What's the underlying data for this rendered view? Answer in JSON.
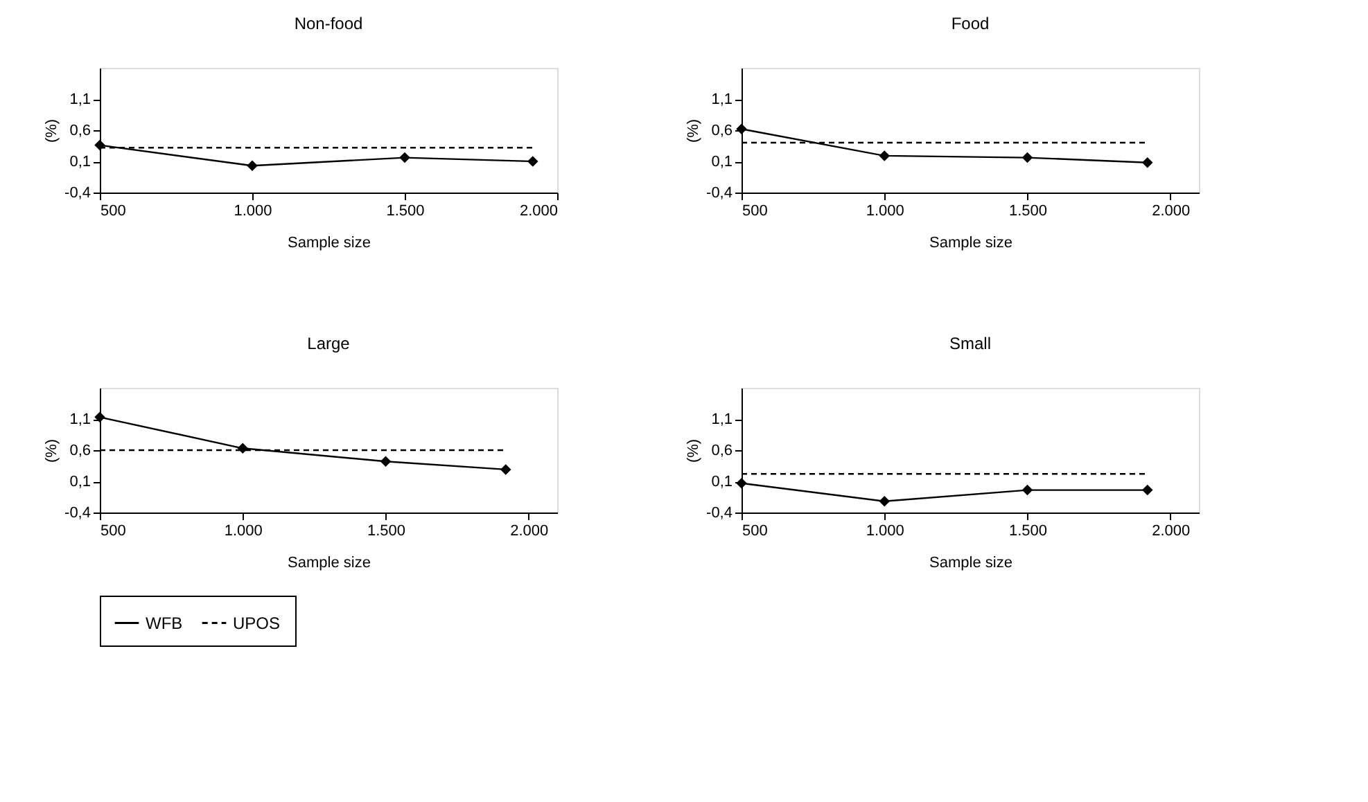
{
  "chart_data": [
    {
      "type": "line",
      "title": "Non-food",
      "xlabel": "Sample size",
      "ylabel": "(%)",
      "legend": "bottom",
      "grid": false,
      "xlim": [
        500,
        2000
      ],
      "xticks": [
        500,
        {
          "value": 1000,
          "label": "1.000"
        },
        {
          "value": 1500,
          "label": "1.500"
        },
        {
          "value": 2000,
          "label": "2.000"
        }
      ],
      "ylim": [
        -0.4,
        1.6
      ],
      "yticks": [
        {
          "value": -0.4,
          "label": "-0,4"
        },
        {
          "value": 0.1,
          "label": "0,1"
        },
        {
          "value": 0.6,
          "label": "0,6"
        },
        {
          "value": 1.1,
          "label": "1,1"
        }
      ],
      "x": [
        500,
        1000,
        1500,
        1920
      ],
      "series": [
        {
          "name": "WFB",
          "color": "#000000",
          "marker": "diamond",
          "line_style": "solid",
          "values": [
            0.36,
            0.03,
            0.16,
            0.1
          ]
        },
        {
          "name": "UPOS",
          "color": "#000000",
          "marker": "none",
          "line_style": "dashed",
          "values": [
            0.32,
            0.32,
            0.32,
            0.32
          ]
        }
      ]
    },
    {
      "type": "line",
      "title": "Food",
      "xlabel": "Sample size",
      "ylabel": "(%)",
      "legend": "bottom",
      "grid": false,
      "xlim": [
        500,
        2100
      ],
      "xticks": [
        500,
        {
          "value": 1000,
          "label": "1.000"
        },
        {
          "value": 1500,
          "label": "1.500"
        },
        {
          "value": 2000,
          "label": "2.000"
        }
      ],
      "ylim": [
        -0.4,
        1.6
      ],
      "yticks": [
        {
          "value": -0.4,
          "label": "-0,4"
        },
        {
          "value": 0.1,
          "label": "0,1"
        },
        {
          "value": 0.6,
          "label": "0,6"
        },
        {
          "value": 1.1,
          "label": "1,1"
        }
      ],
      "x": [
        500,
        1000,
        1500,
        1920
      ],
      "series": [
        {
          "name": "WFB",
          "color": "#000000",
          "marker": "diamond",
          "line_style": "solid",
          "values": [
            0.62,
            0.19,
            0.16,
            0.08
          ]
        },
        {
          "name": "UPOS",
          "color": "#000000",
          "marker": "none",
          "line_style": "dashed",
          "values": [
            0.4,
            0.4,
            0.4,
            0.4
          ]
        }
      ]
    },
    {
      "type": "line",
      "title": "Large",
      "xlabel": "Sample size",
      "ylabel": "(%)",
      "legend": "bottom",
      "grid": false,
      "xlim": [
        500,
        2100
      ],
      "xticks": [
        500,
        {
          "value": 1000,
          "label": "1.000"
        },
        {
          "value": 1500,
          "label": "1.500"
        },
        {
          "value": 2000,
          "label": "2.000"
        }
      ],
      "ylim": [
        -0.4,
        1.6
      ],
      "yticks": [
        {
          "value": -0.4,
          "label": "-0,4"
        },
        {
          "value": 0.1,
          "label": "0,1"
        },
        {
          "value": 0.6,
          "label": "0,6"
        },
        {
          "value": 1.1,
          "label": "1,1"
        }
      ],
      "x": [
        500,
        1000,
        1500,
        1920
      ],
      "series": [
        {
          "name": "WFB",
          "color": "#000000",
          "marker": "diamond",
          "line_style": "solid",
          "values": [
            1.13,
            0.63,
            0.42,
            0.29
          ]
        },
        {
          "name": "UPOS",
          "color": "#000000",
          "marker": "none",
          "line_style": "dashed",
          "values": [
            0.6,
            0.6,
            0.6,
            0.6
          ]
        }
      ]
    },
    {
      "type": "line",
      "title": "Small",
      "xlabel": "Sample size",
      "ylabel": "(%)",
      "legend": "bottom",
      "grid": false,
      "xlim": [
        500,
        2100
      ],
      "xticks": [
        500,
        {
          "value": 1000,
          "label": "1.000"
        },
        {
          "value": 1500,
          "label": "1.500"
        },
        {
          "value": 2000,
          "label": "2.000"
        }
      ],
      "ylim": [
        -0.4,
        1.6
      ],
      "yticks": [
        {
          "value": -0.4,
          "label": "-0,4"
        },
        {
          "value": 0.1,
          "label": "0,1"
        },
        {
          "value": 0.6,
          "label": "0,6"
        },
        {
          "value": 1.1,
          "label": "1,1"
        }
      ],
      "x": [
        500,
        1000,
        1500,
        1920
      ],
      "series": [
        {
          "name": "WFB",
          "color": "#000000",
          "marker": "diamond",
          "line_style": "solid",
          "values": [
            0.07,
            -0.22,
            -0.04,
            -0.04
          ]
        },
        {
          "name": "UPOS",
          "color": "#000000",
          "marker": "none",
          "line_style": "dashed",
          "values": [
            0.22,
            0.22,
            0.22,
            0.22
          ]
        }
      ]
    }
  ]
}
